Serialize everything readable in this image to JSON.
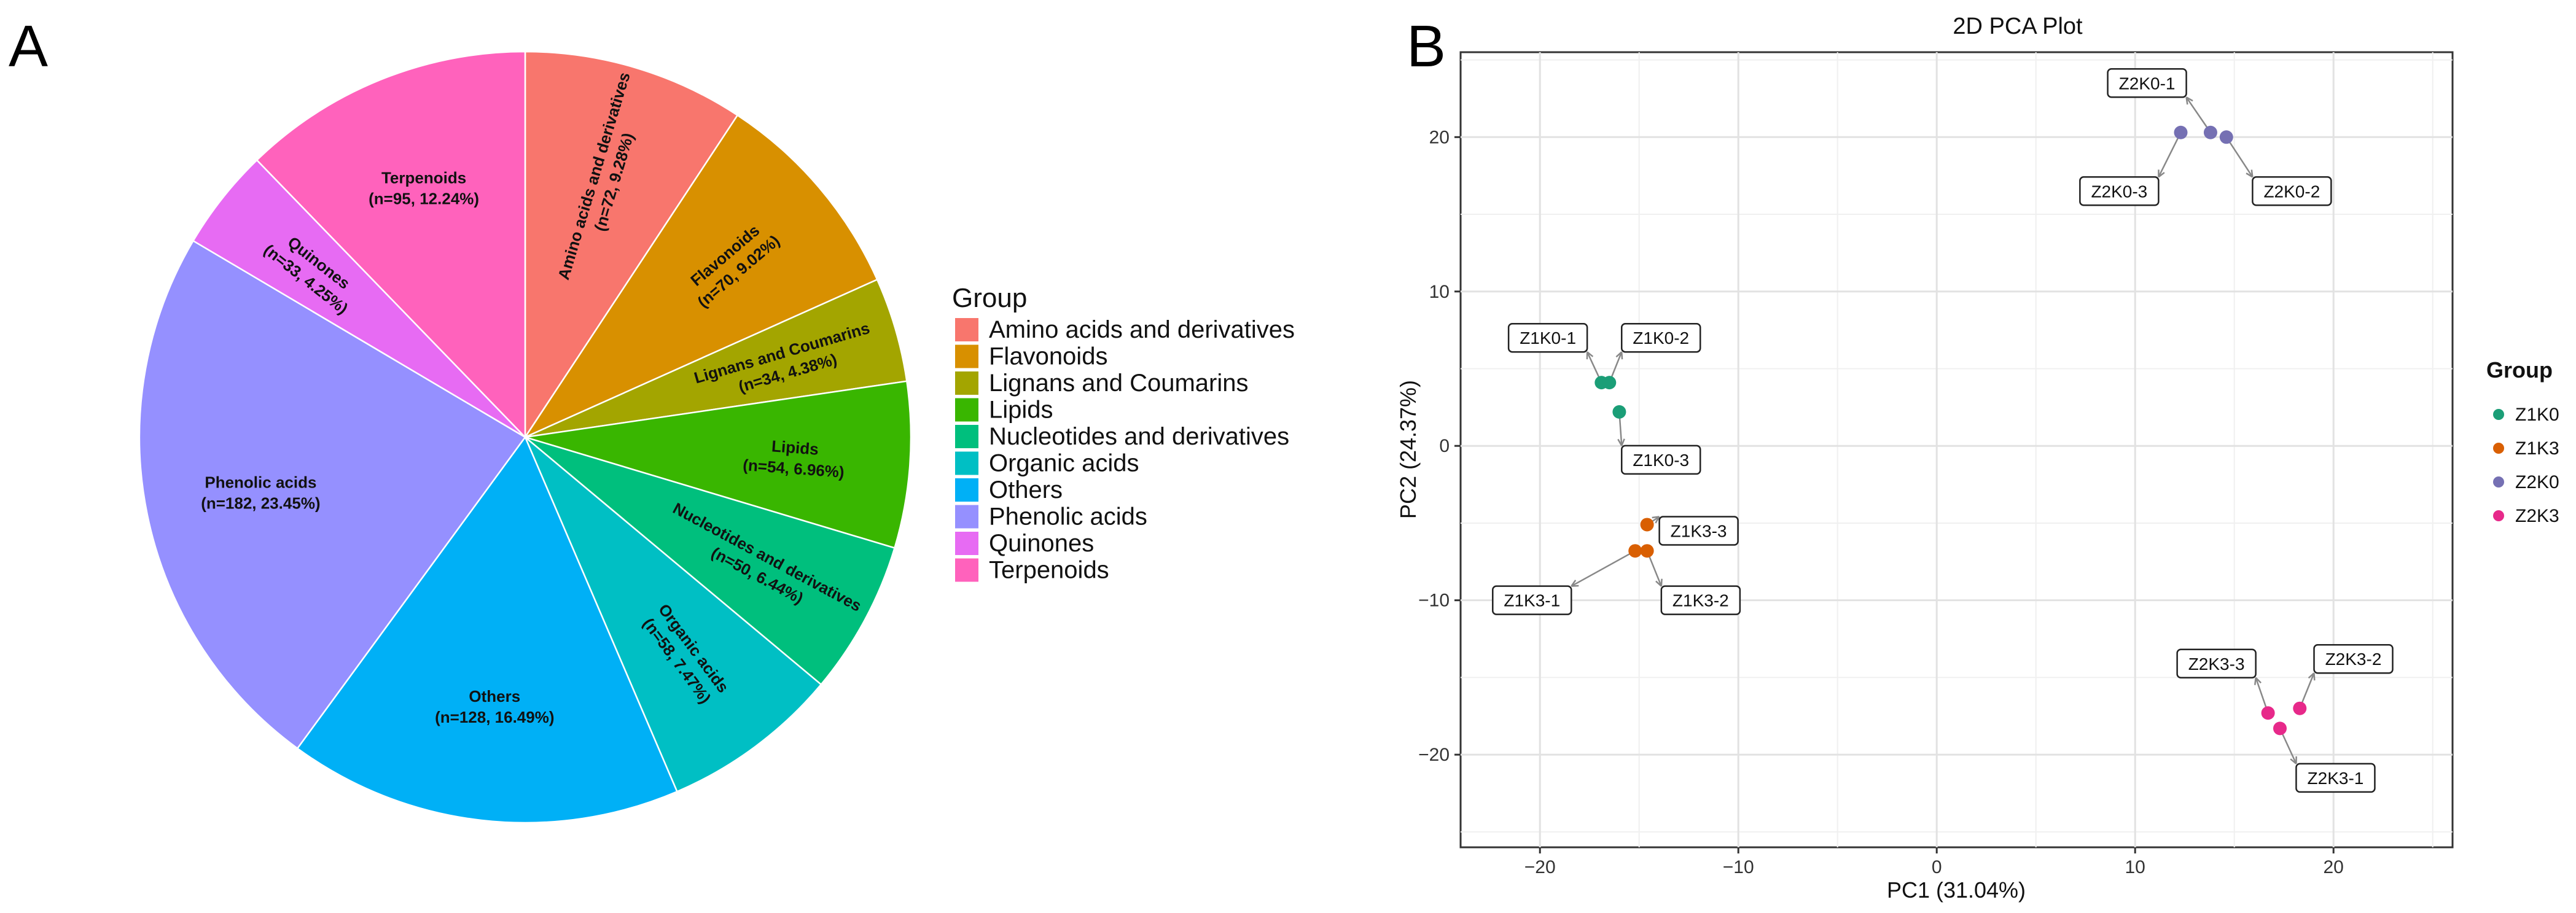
{
  "panel_a_letter": "A",
  "panel_b_letter": "B",
  "chart_data": [
    {
      "type": "pie",
      "title": "",
      "legend_title": "Group",
      "legend_position": "right",
      "slices": [
        {
          "name": "Amino acids and derivatives",
          "n": 72,
          "percent": 9.28,
          "label": "Amino acids and derivatives",
          "label_detail": "(n=72, 9.28%)",
          "color": "#F8766D"
        },
        {
          "name": "Flavonoids",
          "n": 70,
          "percent": 9.02,
          "label": "Flavonoids",
          "label_detail": "(n=70, 9.02%)",
          "color": "#D89000"
        },
        {
          "name": "Lignans and Coumarins",
          "n": 34,
          "percent": 4.38,
          "label": "Lignans and Coumarins",
          "label_detail": "(n=34, 4.38%)",
          "color": "#A3A500"
        },
        {
          "name": "Lipids",
          "n": 54,
          "percent": 6.96,
          "label": "Lipids",
          "label_detail": "(n=54, 6.96%)",
          "color": "#39B600"
        },
        {
          "name": "Nucleotides and derivatives",
          "n": 50,
          "percent": 6.44,
          "label": "Nucleotides and derivatives",
          "label_detail": "(n=50, 6.44%)",
          "color": "#00BF7D"
        },
        {
          "name": "Organic acids",
          "n": 58,
          "percent": 7.47,
          "label": "Organic acids",
          "label_detail": "(n=58, 7.47%)",
          "color": "#00BFC4"
        },
        {
          "name": "Others",
          "n": 128,
          "percent": 16.49,
          "label": "Others",
          "label_detail": "(n=128, 16.49%)",
          "color": "#00B0F6"
        },
        {
          "name": "Phenolic acids",
          "n": 182,
          "percent": 23.45,
          "label": "Phenolic acids",
          "label_detail": "(n=182, 23.45%)",
          "color": "#9590FF"
        },
        {
          "name": "Quinones",
          "n": 33,
          "percent": 4.25,
          "label": "Quinones",
          "label_detail": "(n=33, 4.25%)",
          "color": "#E76BF3"
        },
        {
          "name": "Terpenoids",
          "n": 95,
          "percent": 12.24,
          "label": "Terpenoids",
          "label_detail": "(n=95, 12.24%)",
          "color": "#FF62BC"
        }
      ]
    },
    {
      "type": "scatter",
      "title": "2D PCA Plot",
      "xlabel": "PC1 (31.04%)",
      "ylabel": "PC2 (24.37%)",
      "xlim": [
        -24,
        26
      ],
      "ylim": [
        -26,
        25.5
      ],
      "xticks": [
        -20,
        -10,
        0,
        10,
        20
      ],
      "yticks": [
        -20,
        -10,
        0,
        10,
        20
      ],
      "xtick_labels": [
        "−20",
        "−10",
        "0",
        "10",
        "20"
      ],
      "ytick_labels": [
        "−20",
        "−10",
        "0",
        "10",
        "20"
      ],
      "grid": true,
      "legend_title": "Group",
      "legend_position": "right",
      "groups": [
        {
          "name": "Z1K0",
          "color": "#1B9E77"
        },
        {
          "name": "Z1K3",
          "color": "#D95F02"
        },
        {
          "name": "Z2K0",
          "color": "#7570B3"
        },
        {
          "name": "Z2K3",
          "color": "#E7298A"
        }
      ],
      "points": [
        {
          "label": "Z1K0-1",
          "group": "Z1K0",
          "x": -16.9,
          "y": 4.1,
          "label_x": -19.6,
          "label_y": 7.0
        },
        {
          "label": "Z1K0-2",
          "group": "Z1K0",
          "x": -16.5,
          "y": 4.1,
          "label_x": -13.9,
          "label_y": 7.0
        },
        {
          "label": "Z1K0-3",
          "group": "Z1K0",
          "x": -16.0,
          "y": 2.2,
          "label_x": -13.9,
          "label_y": -0.9
        },
        {
          "label": "Z1K3-1",
          "group": "Z1K3",
          "x": -15.2,
          "y": -6.8,
          "label_x": -20.4,
          "label_y": -10.0
        },
        {
          "label": "Z1K3-2",
          "group": "Z1K3",
          "x": -14.6,
          "y": -6.8,
          "label_x": -11.9,
          "label_y": -10.0
        },
        {
          "label": "Z1K3-3",
          "group": "Z1K3",
          "x": -14.6,
          "y": -5.1,
          "label_x": -12.0,
          "label_y": -5.5
        },
        {
          "label": "Z2K0-1",
          "group": "Z2K0",
          "x": 13.8,
          "y": 20.3,
          "label_x": 10.6,
          "label_y": 23.5
        },
        {
          "label": "Z2K0-2",
          "group": "Z2K0",
          "x": 14.6,
          "y": 20.0,
          "label_x": 17.9,
          "label_y": 16.5
        },
        {
          "label": "Z2K0-3",
          "group": "Z2K0",
          "x": 12.3,
          "y": 20.3,
          "label_x": 9.2,
          "label_y": 16.5
        },
        {
          "label": "Z2K3-1",
          "group": "Z2K3",
          "x": 17.3,
          "y": -18.3,
          "label_x": 20.1,
          "label_y": -21.5
        },
        {
          "label": "Z2K3-2",
          "group": "Z2K3",
          "x": 18.3,
          "y": -17.0,
          "label_x": 21.0,
          "label_y": -13.8
        },
        {
          "label": "Z2K3-3",
          "group": "Z2K3",
          "x": 16.7,
          "y": -17.3,
          "label_x": 14.1,
          "label_y": -14.1
        }
      ]
    }
  ]
}
